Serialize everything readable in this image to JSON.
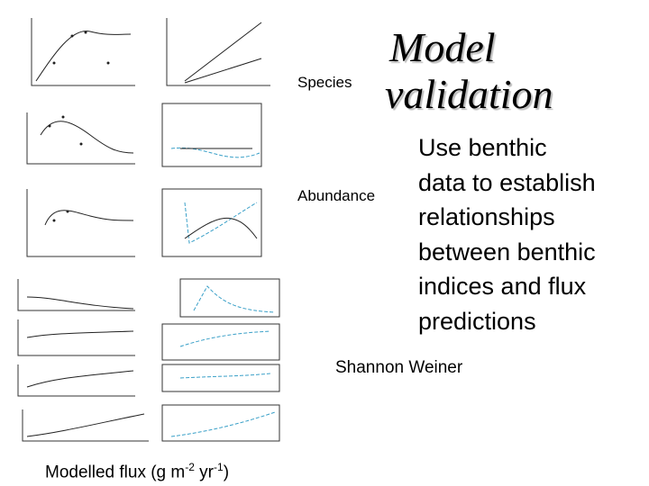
{
  "title": [
    "Model",
    "validation"
  ],
  "labels": {
    "species": "Species",
    "abundance": "Abundance",
    "shannon": "Shannon Weiner"
  },
  "body": [
    "Use benthic",
    "data to establish",
    "relationships",
    "between benthic",
    "indices and flux",
    "predictions"
  ],
  "caption": [
    "Modelled flux (g m",
    "-2",
    " yr",
    "-1",
    ")"
  ]
}
